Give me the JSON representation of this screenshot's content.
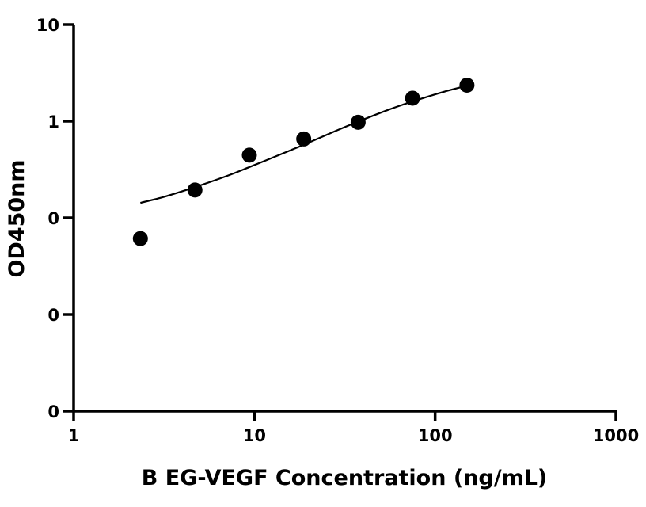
{
  "chart_data": {
    "type": "scatter",
    "xlabel": "B EG-VEGF Concentration (ng/mL)",
    "ylabel": "OD450nm",
    "x_scale": "log",
    "y_scale": "log",
    "xlim": [
      1,
      1000
    ],
    "ylim": [
      0.001,
      10
    ],
    "x_ticks": [
      1,
      10,
      100,
      1000
    ],
    "x_tick_labels": [
      "1",
      "10",
      "100",
      "1000"
    ],
    "y_ticks": [
      0.001,
      0.01,
      0.1,
      1,
      10
    ],
    "y_tick_labels": [
      "0",
      "0",
      "0",
      "1",
      "10"
    ],
    "points": [
      {
        "x": 2.34,
        "y": 0.061
      },
      {
        "x": 4.69,
        "y": 0.194
      },
      {
        "x": 9.38,
        "y": 0.445
      },
      {
        "x": 18.75,
        "y": 0.655
      },
      {
        "x": 37.5,
        "y": 0.975
      },
      {
        "x": 75,
        "y": 1.73
      },
      {
        "x": 150,
        "y": 2.36
      }
    ],
    "fit_curve": {
      "x": [
        2.34,
        3.2,
        4.69,
        7,
        9.38,
        14,
        18.75,
        28,
        37.5,
        55,
        75,
        110,
        150
      ],
      "y": [
        0.143,
        0.166,
        0.208,
        0.27,
        0.335,
        0.455,
        0.57,
        0.79,
        0.99,
        1.31,
        1.6,
        2.0,
        2.33
      ]
    },
    "grid": false,
    "legend": "none",
    "colors": {
      "marker": "#000000",
      "line": "#000000",
      "axis": "#000000"
    }
  }
}
